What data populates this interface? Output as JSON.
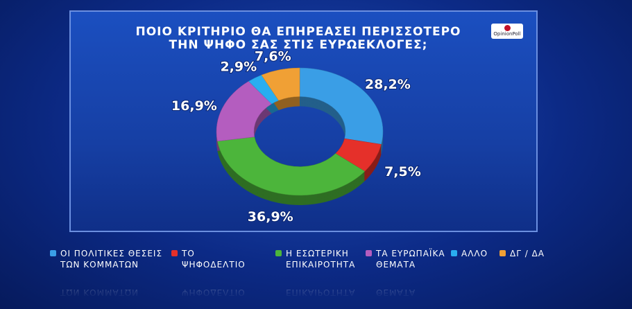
{
  "chart_data": {
    "type": "donut",
    "title": "ΠΟΙΟ ΚΡΙΤΗΡΙΟ ΘΑ ΕΠΗΡΕΑΣΕΙ ΠΕΡΙΣΣΟΤΕΡΟ ΤΗΝ ΨΗΦΟ ΣΑΣ ΣΤΙΣ ΕΥΡΩΕΚΛΟΓΕΣ;",
    "logo": "OpinionPoll",
    "categories": [
      "ΟΙ ΠΟΛΙΤΙΚΕΣ ΘΕΣΕΙΣ ΤΩΝ ΚΟΜΜΑΤΩΝ",
      "ΤΟ ΨΗΦΟΔΕΛΤΙΟ",
      "Η ΕΣΩΤΕΡΙΚΗ ΕΠΙΚΑΙΡΟΤΗΤΑ",
      "ΤΑ ΕΥΡΩΠΑΪΚΑ ΘΕΜΑΤΑ",
      "ΑΛΛΟ",
      "ΔΓ / ΔΑ"
    ],
    "values": [
      28.2,
      7.5,
      36.9,
      16.9,
      2.9,
      7.6
    ],
    "value_labels": [
      "28,2%",
      "7,5%",
      "36,9%",
      "16,9%",
      "2,9%",
      "7,6%"
    ],
    "colors": [
      "#3a9ee6",
      "#e5302a",
      "#4cb53b",
      "#b45dbf",
      "#29aef0",
      "#f0a035"
    ]
  }
}
